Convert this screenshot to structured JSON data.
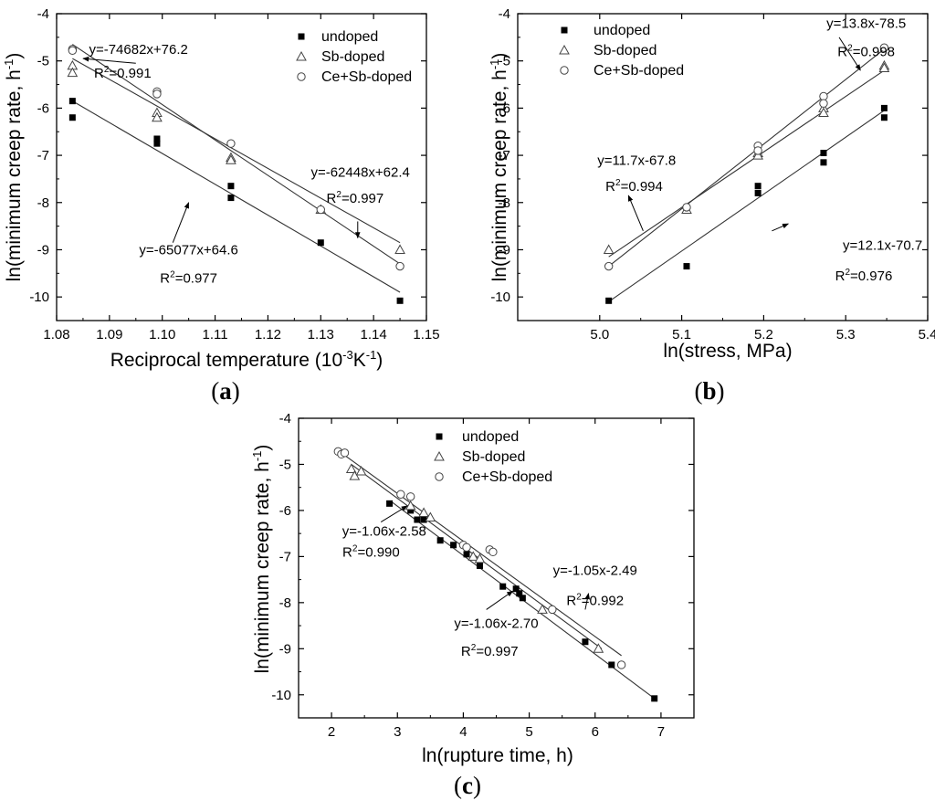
{
  "chart_data": [
    {
      "type": "scatter",
      "panel_label": [
        "(",
        "a",
        ")"
      ],
      "xlabel": "Reciprocal temperature (10",
      "xlabel_sup1": "-3",
      "xlabel_mid": "K",
      "xlabel_sup2": "-1",
      "xlabel_end": ")",
      "ylabel": "ln(minimum creep rate, h",
      "ylabel_sup": "-1",
      "ylabel_end": ")",
      "xlim": [
        1.08,
        1.15
      ],
      "ylim": [
        -10.5,
        -4
      ],
      "xticks": [
        "1.08",
        "1.09",
        "1.10",
        "1.11",
        "1.12",
        "1.13",
        "1.14",
        "1.15"
      ],
      "yticks": [
        "-4",
        "-5",
        "-6",
        "-7",
        "-8",
        "-9",
        "-10"
      ],
      "legend_position": "top-right",
      "series": [
        {
          "name": "undoped",
          "marker": "square",
          "x": [
            1.083,
            1.083,
            1.099,
            1.099,
            1.113,
            1.113,
            1.13,
            1.145
          ],
          "y": [
            -5.85,
            -6.2,
            -6.65,
            -6.75,
            -7.65,
            -7.9,
            -8.85,
            -10.08
          ]
        },
        {
          "name": "Sb-doped",
          "marker": "triangle",
          "x": [
            1.083,
            1.083,
            1.099,
            1.099,
            1.113,
            1.113,
            1.13,
            1.145
          ],
          "y": [
            -5.1,
            -5.25,
            -6.1,
            -6.2,
            -7.05,
            -7.1,
            -8.15,
            -9.0
          ]
        },
        {
          "name": "Ce+Sb-doped",
          "marker": "circle",
          "x": [
            1.083,
            1.083,
            1.099,
            1.099,
            1.113,
            1.13,
            1.145
          ],
          "y": [
            -4.75,
            -4.78,
            -5.65,
            -5.7,
            -6.75,
            -8.15,
            -9.35
          ]
        }
      ],
      "fits": [
        {
          "x": [
            1.083,
            1.145
          ],
          "y": [
            -4.65,
            -9.3
          ]
        },
        {
          "x": [
            1.083,
            1.145
          ],
          "y": [
            -4.95,
            -8.85
          ]
        },
        {
          "x": [
            1.083,
            1.145
          ],
          "y": [
            -5.85,
            -9.9
          ]
        }
      ],
      "annotations": [
        {
          "eq": "y=-74682x+76.2",
          "r2": "=0.991",
          "eq_pos": [
            1.0955,
            -4.85
          ],
          "r2_pos": [
            1.0925,
            -5.35
          ],
          "arrow": [
            1.095,
            -5.05,
            1.085,
            -4.95
          ]
        },
        {
          "eq": "y=-62448x+62.4",
          "r2": "=0.997",
          "eq_pos": [
            1.1375,
            -7.45
          ],
          "r2_pos": [
            1.1365,
            -8.0
          ],
          "arrow": [
            1.137,
            -8.4,
            1.137,
            -8.75
          ]
        },
        {
          "eq": "y=-65077x+64.6",
          "r2": "=0.977",
          "eq_pos": [
            1.105,
            -9.1
          ],
          "r2_pos": [
            1.105,
            -9.7
          ],
          "arrow": [
            1.102,
            -8.85,
            1.105,
            -8.0
          ]
        }
      ]
    },
    {
      "type": "scatter",
      "panel_label": [
        "(",
        "b",
        ")"
      ],
      "xlabel": "ln(stress, MPa)",
      "ylabel": "ln(minimum creep rate, h",
      "ylabel_sup": "-1",
      "ylabel_end": ")",
      "xlim": [
        4.9,
        5.4
      ],
      "ylim": [
        -10.5,
        -4
      ],
      "xticks": [
        "5.0",
        "5.1",
        "5.2",
        "5.3",
        "5.4"
      ],
      "yticks": [
        "-4",
        "-5",
        "-6",
        "-7",
        "-8",
        "-9",
        "-10"
      ],
      "legend_position": "top-left",
      "series": [
        {
          "name": "undoped",
          "marker": "square",
          "x": [
            5.011,
            5.106,
            5.193,
            5.193,
            5.273,
            5.273,
            5.347,
            5.347
          ],
          "y": [
            -10.08,
            -9.35,
            -7.65,
            -7.8,
            -6.95,
            -7.15,
            -6.0,
            -6.2
          ]
        },
        {
          "name": "Sb-doped",
          "marker": "triangle",
          "x": [
            5.011,
            5.106,
            5.193,
            5.193,
            5.273,
            5.273,
            5.347,
            5.347
          ],
          "y": [
            -9.0,
            -8.15,
            -6.95,
            -7.0,
            -6.0,
            -6.1,
            -5.1,
            -5.15
          ]
        },
        {
          "name": "Ce+Sb-doped",
          "marker": "circle",
          "x": [
            5.011,
            5.106,
            5.193,
            5.193,
            5.273,
            5.273,
            5.347
          ],
          "y": [
            -9.35,
            -8.1,
            -6.8,
            -6.9,
            -5.75,
            -5.9,
            -4.72
          ]
        }
      ],
      "fits": [
        {
          "x": [
            5.011,
            5.347
          ],
          "y": [
            -10.1,
            -6.05
          ]
        },
        {
          "x": [
            5.011,
            5.347
          ],
          "y": [
            -9.15,
            -5.2
          ]
        },
        {
          "x": [
            5.011,
            5.347
          ],
          "y": [
            -9.35,
            -4.75
          ]
        }
      ],
      "annotations": [
        {
          "eq": "y=13.8x-78.5",
          "r2": "=0.998",
          "eq_pos": [
            5.325,
            -4.3
          ],
          "r2_pos": [
            5.325,
            -4.9
          ],
          "arrow": [
            5.292,
            -4.5,
            5.318,
            -5.2
          ]
        },
        {
          "eq": "y=11.7x-67.8",
          "r2": "=0.994",
          "eq_pos": [
            5.045,
            -7.2
          ],
          "r2_pos": [
            5.042,
            -7.75
          ],
          "arrow": [
            5.053,
            -8.6,
            5.035,
            -7.85
          ]
        },
        {
          "eq": "y=12.1x-70.7",
          "r2": "=0.976",
          "eq_pos": [
            5.345,
            -9.0
          ],
          "r2_pos": [
            5.322,
            -9.65
          ],
          "arrow": [
            5.21,
            -8.6,
            5.23,
            -8.45
          ]
        }
      ]
    },
    {
      "type": "scatter",
      "panel_label": [
        "(",
        "c",
        ")"
      ],
      "xlabel": "ln(rupture time, h)",
      "ylabel": "ln(minimum creep rate, h",
      "ylabel_sup": "-1",
      "ylabel_end": ")",
      "xlim": [
        1.5,
        7.5
      ],
      "ylim": [
        -10.5,
        -4
      ],
      "xticks": [
        "2",
        "3",
        "4",
        "5",
        "6",
        "7"
      ],
      "yticks": [
        "-4",
        "-5",
        "-6",
        "-7",
        "-8",
        "-9",
        "-10"
      ],
      "legend_position": "top-right",
      "series": [
        {
          "name": "undoped",
          "marker": "square",
          "x": [
            2.88,
            3.2,
            3.3,
            3.4,
            3.65,
            3.85,
            4.05,
            4.25,
            4.6,
            4.8,
            4.85,
            4.9,
            5.85,
            6.25,
            6.9
          ],
          "y": [
            -5.85,
            -6.0,
            -6.2,
            -6.2,
            -6.65,
            -6.75,
            -6.95,
            -7.2,
            -7.65,
            -7.7,
            -7.8,
            -7.9,
            -8.85,
            -9.35,
            -10.08
          ]
        },
        {
          "name": "Sb-doped",
          "marker": "triangle",
          "x": [
            2.3,
            2.35,
            2.45,
            3.2,
            3.4,
            3.5,
            4.15,
            4.25,
            5.2,
            6.05
          ],
          "y": [
            -5.1,
            -5.25,
            -5.15,
            -5.9,
            -6.05,
            -6.15,
            -7.0,
            -7.05,
            -8.15,
            -9.0
          ]
        },
        {
          "name": "Ce+Sb-doped",
          "marker": "circle",
          "x": [
            2.1,
            2.15,
            2.2,
            3.05,
            3.2,
            4.0,
            4.05,
            4.4,
            4.45,
            5.35,
            6.4
          ],
          "y": [
            -4.72,
            -4.78,
            -4.75,
            -5.65,
            -5.7,
            -6.75,
            -6.8,
            -6.85,
            -6.9,
            -8.15,
            -9.35
          ]
        }
      ],
      "fits": [
        {
          "x": [
            2.1,
            6.4
          ],
          "y": [
            -4.7,
            -9.15
          ]
        },
        {
          "x": [
            2.3,
            6.1
          ],
          "y": [
            -5.0,
            -9.0
          ]
        },
        {
          "x": [
            2.9,
            6.9
          ],
          "y": [
            -5.8,
            -10.08
          ]
        }
      ],
      "annotations": [
        {
          "eq": "y=-1.06x-2.58",
          "r2": "=0.990",
          "eq_pos": [
            2.8,
            -6.55
          ],
          "r2_pos": [
            2.6,
            -7.0
          ],
          "arrow": [
            2.75,
            -6.25,
            3.15,
            -5.9
          ]
        },
        {
          "eq": "y=-1.05x-2.49",
          "r2": "=0.992",
          "eq_pos": [
            6.0,
            -7.4
          ],
          "r2_pos": [
            6.0,
            -8.05
          ],
          "arrow": [
            5.85,
            -8.15,
            5.9,
            -7.8
          ]
        },
        {
          "eq": "y=-1.06x-2.70",
          "r2": "=0.997",
          "eq_pos": [
            4.5,
            -8.55
          ],
          "r2_pos": [
            4.4,
            -9.15
          ],
          "arrow": [
            4.35,
            -8.15,
            4.75,
            -7.75
          ]
        }
      ]
    }
  ]
}
